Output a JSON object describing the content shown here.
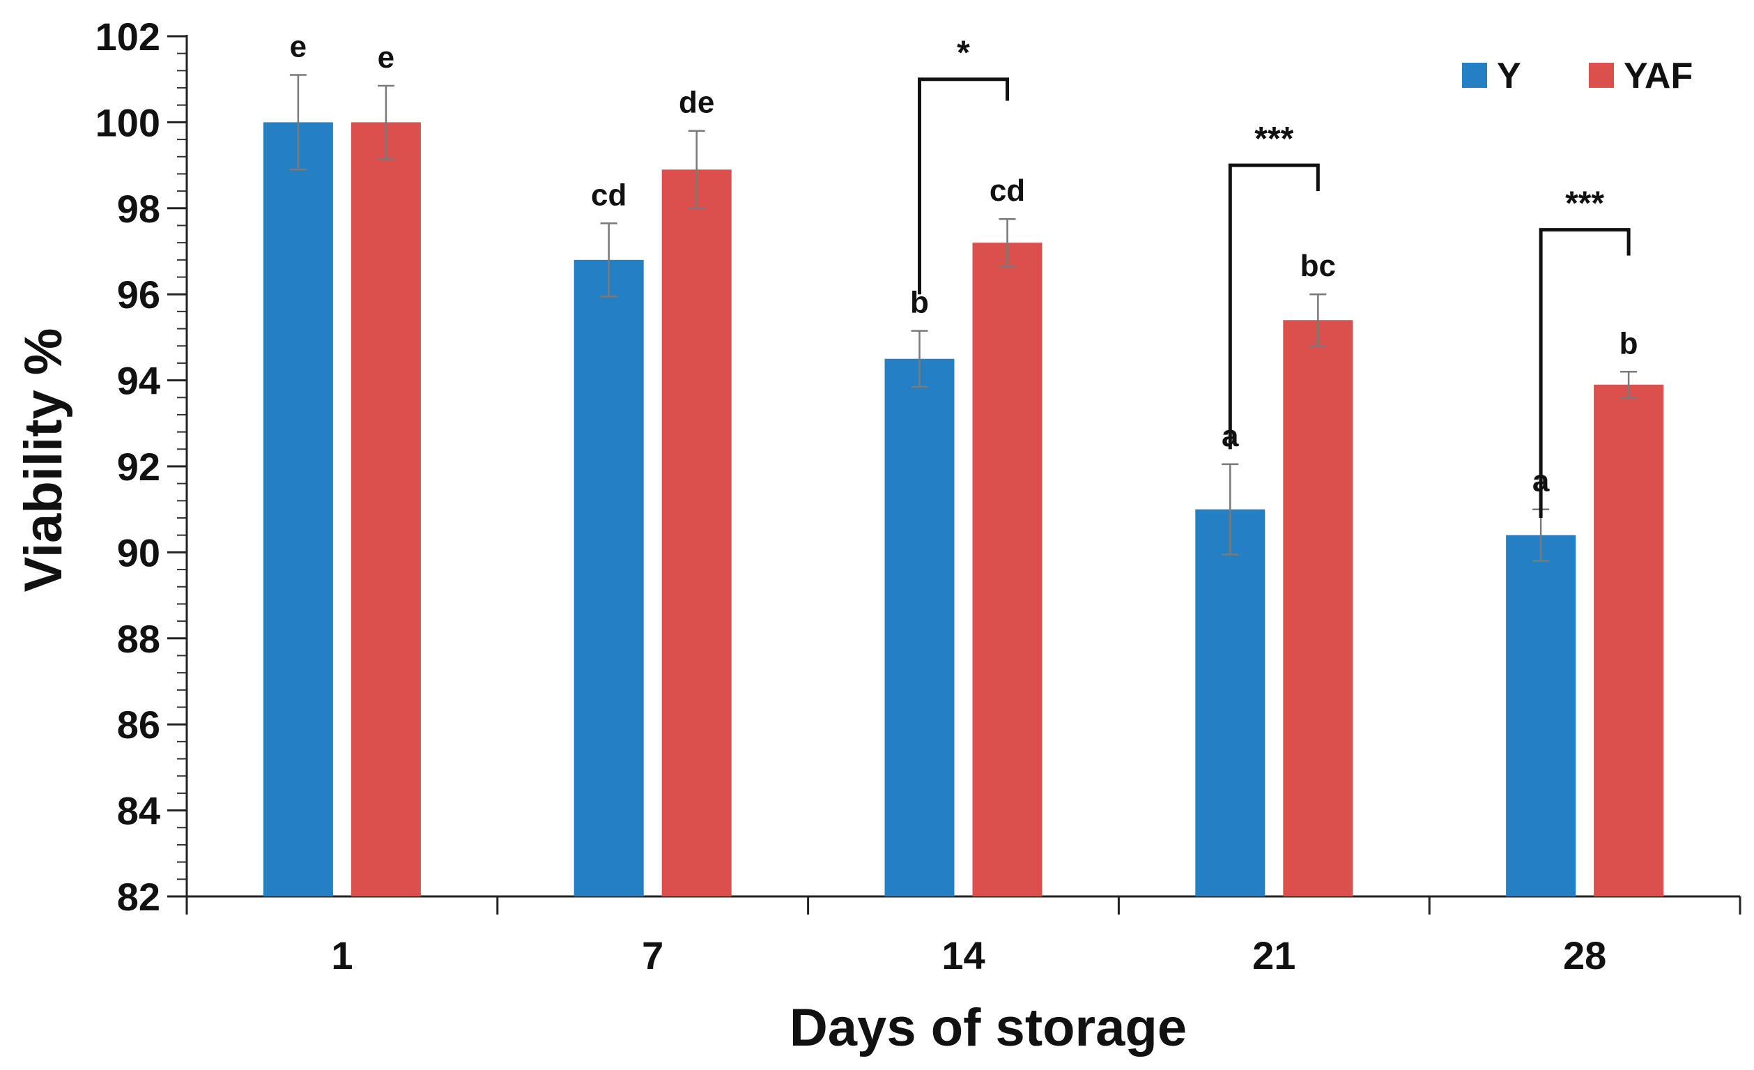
{
  "chart_data": {
    "type": "bar",
    "title": "",
    "xlabel": "Days of storage",
    "ylabel": "Viability %",
    "ylim": [
      82,
      102
    ],
    "y_major_ticks": [
      82,
      84,
      86,
      88,
      90,
      92,
      94,
      96,
      98,
      100,
      102
    ],
    "y_minor_step": 0.4,
    "grid": false,
    "legend_position": "top-right",
    "categories": [
      "1",
      "7",
      "14",
      "21",
      "28"
    ],
    "series": [
      {
        "name": "Y",
        "color": "#2580c3",
        "values": [
          100.0,
          96.8,
          94.5,
          91.0,
          90.4
        ],
        "errors": [
          1.1,
          0.85,
          0.65,
          1.05,
          0.6
        ],
        "letters": [
          "e",
          "cd",
          "b",
          "a",
          "a"
        ]
      },
      {
        "name": "YAF",
        "color": "#db4f4c",
        "values": [
          100.0,
          98.9,
          97.2,
          95.4,
          93.9
        ],
        "errors": [
          0.85,
          0.9,
          0.55,
          0.6,
          0.3
        ],
        "letters": [
          "e",
          "de",
          "cd",
          "bc",
          "b"
        ]
      }
    ],
    "significance": [
      {
        "category": "14",
        "label": "*",
        "y_top": 101.0,
        "y_left_end": 96.0,
        "y_right_end": 100.5
      },
      {
        "category": "21",
        "label": "***",
        "y_top": 99.0,
        "y_left_end": 92.4,
        "y_right_end": 98.4
      },
      {
        "category": "28",
        "label": "***",
        "y_top": 97.5,
        "y_left_end": 90.8,
        "y_right_end": 96.9
      }
    ]
  }
}
